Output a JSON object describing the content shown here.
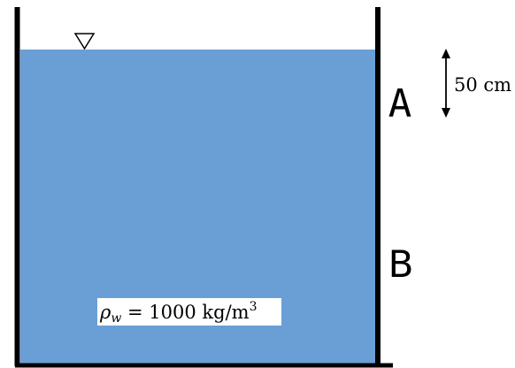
{
  "diagram": {
    "point_a_label": "A",
    "point_b_label": "B",
    "dimension_label": "50 cm",
    "density_label": {
      "symbol": "ρ",
      "subscript": "w",
      "equals_value": " = 1000 kg/m",
      "superscript": "3"
    },
    "free_surface_symbol": "inverted-triangle-icon",
    "colors": {
      "water": "#6a9fd6",
      "wall": "#000000",
      "label_box": "#ffffff"
    }
  }
}
